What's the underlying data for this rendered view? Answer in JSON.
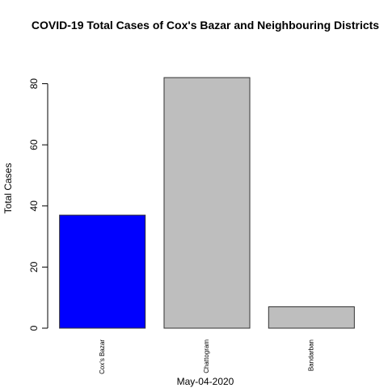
{
  "chart_data": {
    "type": "bar",
    "title": "COVID-19 Total Cases of Cox's Bazar and Neighbouring Districts",
    "xlabel": "May-04-2020",
    "ylabel": "Total Cases",
    "categories": [
      "Cox's Bazar",
      "Chattogram",
      "Bandarban"
    ],
    "values": [
      37,
      82,
      7
    ],
    "bar_colors": [
      "#0000ff",
      "#bebebe",
      "#bebebe"
    ],
    "bar_border_color": "#333333",
    "ylim": [
      0,
      82
    ],
    "yticks": [
      0,
      20,
      40,
      60,
      80
    ],
    "grid": false,
    "legend": "none"
  }
}
